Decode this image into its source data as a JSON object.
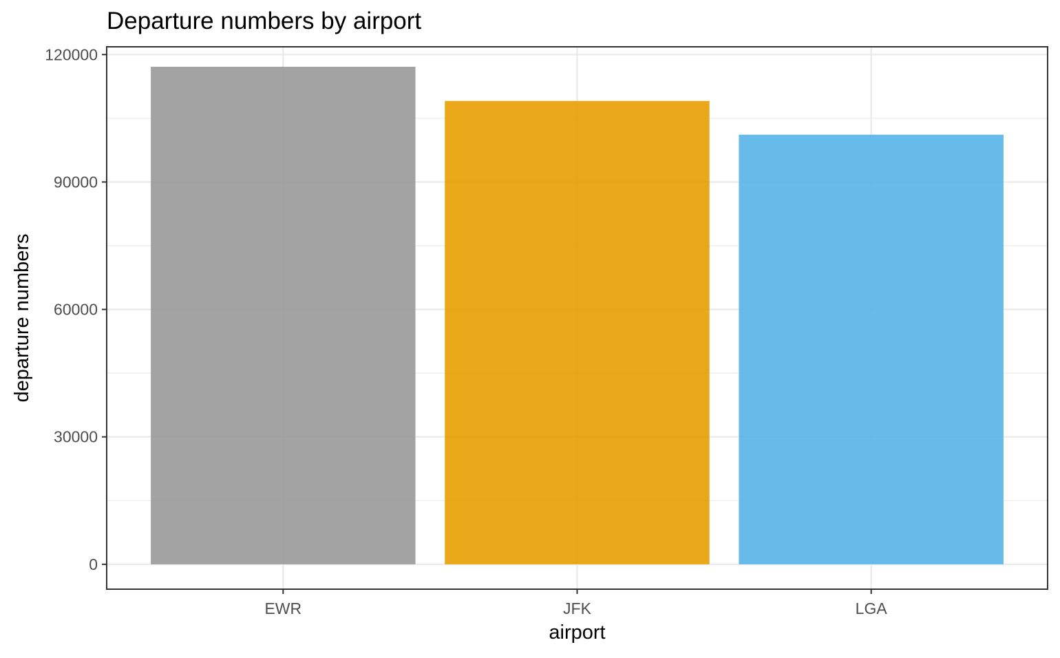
{
  "chart_data": {
    "type": "bar",
    "title": "Departure numbers by airport",
    "xlabel": "airport",
    "ylabel": "departure numbers",
    "categories": [
      "EWR",
      "JFK",
      "LGA"
    ],
    "values": [
      117127,
      109079,
      101140
    ],
    "colors": [
      "#999999",
      "#E69F00",
      "#56B4E9"
    ],
    "bar_opacity": 0.9,
    "ylim": [
      -5856,
      120000
    ],
    "y_ticks": [
      0,
      30000,
      60000,
      90000,
      120000
    ],
    "y_tick_labels": [
      "0",
      "30000",
      "60000",
      "90000",
      "120000"
    ],
    "y_minor_ticks": [
      15000,
      45000,
      75000,
      105000
    ],
    "grid": true,
    "legend": "none",
    "theme": "bw"
  }
}
